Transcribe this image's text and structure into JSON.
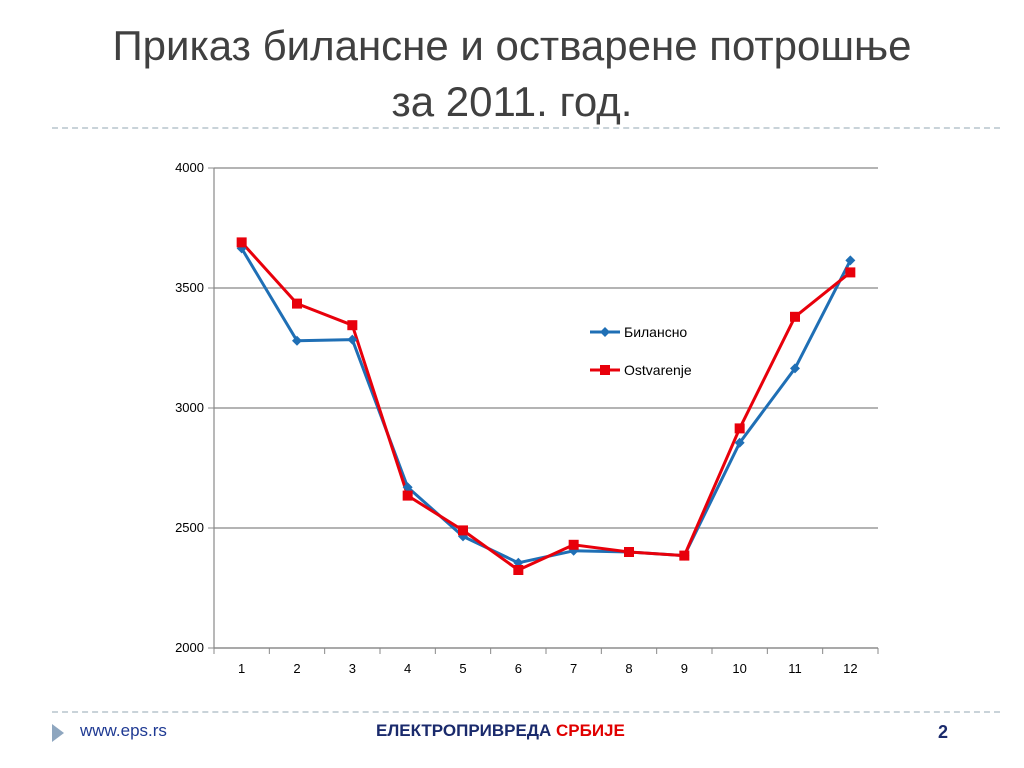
{
  "slide": {
    "title_line1": "Приказ билансне и остварене потрошње",
    "title_line2": "за 2011. год."
  },
  "footer": {
    "url": "www.eps.rs",
    "brand_part1": "ЕЛЕКТРОПРИВРЕДА",
    "brand_part2": "СРБИЈЕ",
    "page_number": "2"
  },
  "chart_data": {
    "type": "line",
    "title": "",
    "xlabel": "",
    "ylabel": "",
    "categories": [
      "1",
      "2",
      "3",
      "4",
      "5",
      "6",
      "7",
      "8",
      "9",
      "10",
      "11",
      "12"
    ],
    "ylim": [
      2000,
      4000
    ],
    "yticks": [
      "2000",
      "2500",
      "3000",
      "3500",
      "4000"
    ],
    "grid": true,
    "legend_position": "right",
    "series": [
      {
        "name": "Билансно",
        "color": "#1f6fb5",
        "marker": "diamond",
        "values": [
          3665,
          3280,
          3285,
          2670,
          2465,
          2355,
          2405,
          2400,
          2385,
          2855,
          3165,
          3615
        ]
      },
      {
        "name": "Ostvarenje",
        "color": "#e8000b",
        "marker": "square",
        "values": [
          3690,
          3435,
          3345,
          2635,
          2490,
          2325,
          2430,
          2400,
          2385,
          2915,
          3380,
          3565
        ]
      }
    ]
  }
}
